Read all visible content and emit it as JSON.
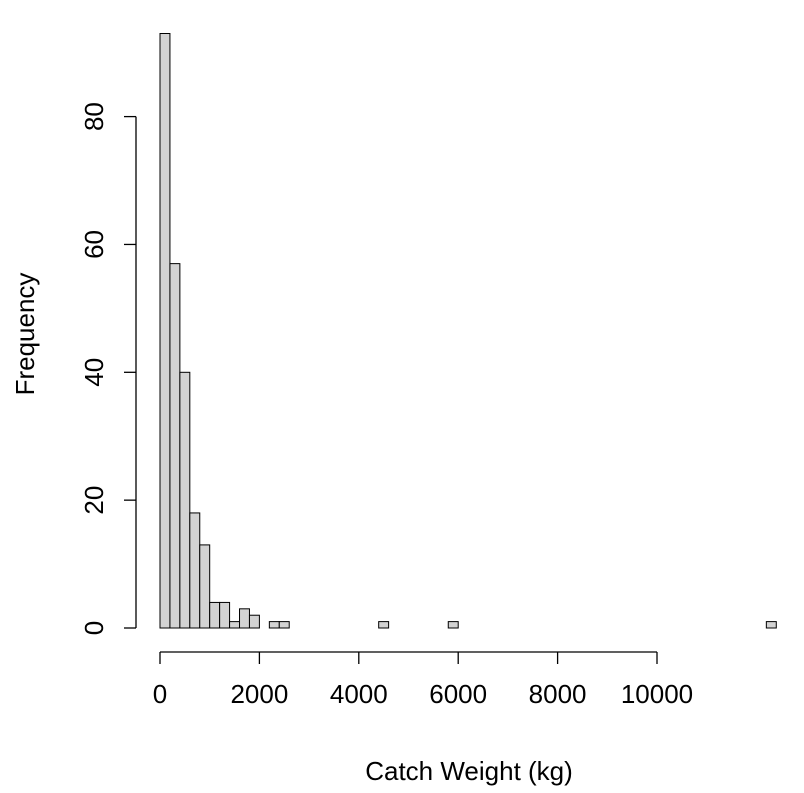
{
  "chart_data": {
    "type": "bar",
    "subtype": "histogram",
    "title": "",
    "xlabel": "Catch Weight (kg)",
    "ylabel": "Frequency",
    "bin_width": 200,
    "bin_start": 0,
    "x_range": [
      0,
      12400
    ],
    "xlim": [
      -500,
      12600
    ],
    "ylim": [
      0,
      93
    ],
    "x_ticks": [
      0,
      2000,
      4000,
      6000,
      8000,
      10000
    ],
    "x_tick_labels": [
      "0",
      "2000",
      "4000",
      "6000",
      "8000",
      "10000"
    ],
    "y_ticks": [
      0,
      20,
      40,
      60,
      80
    ],
    "y_tick_labels": [
      "0",
      "20",
      "40",
      "60",
      "80"
    ],
    "bar_fill": "#d3d3d3",
    "bar_stroke": "#000000",
    "counts": [
      93,
      57,
      40,
      18,
      13,
      4,
      4,
      1,
      3,
      2,
      0,
      1,
      1,
      0,
      0,
      0,
      0,
      0,
      0,
      0,
      0,
      0,
      1,
      0,
      0,
      0,
      0,
      0,
      0,
      1,
      0,
      0,
      0,
      0,
      0,
      0,
      0,
      0,
      0,
      0,
      0,
      0,
      0,
      0,
      0,
      0,
      0,
      0,
      0,
      0,
      0,
      0,
      0,
      0,
      0,
      0,
      0,
      0,
      0,
      0,
      0,
      1
    ],
    "grid": false,
    "legend": "none"
  }
}
